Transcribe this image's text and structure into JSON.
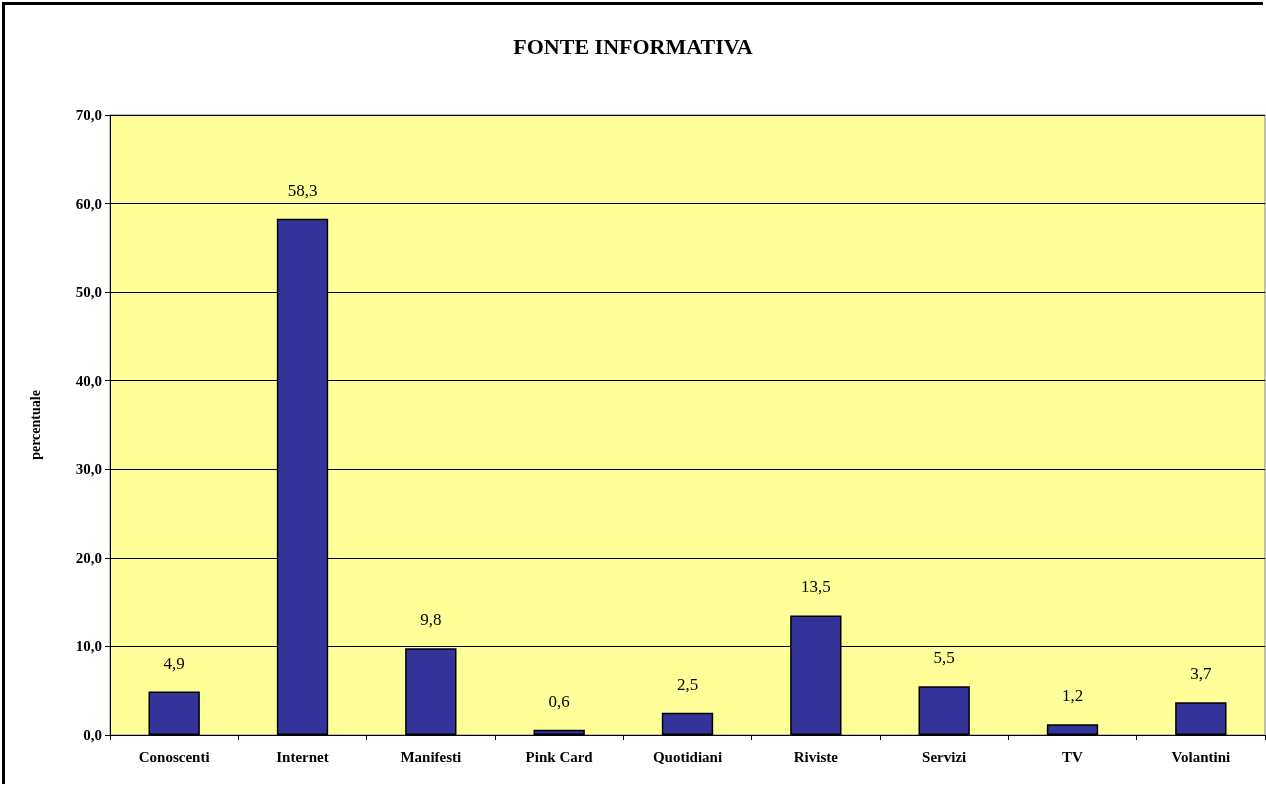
{
  "chart_data": {
    "type": "bar",
    "title": "FONTE INFORMATIVA",
    "ylabel": "percentuale",
    "categories": [
      "Conoscenti",
      "Internet",
      "Manifesti",
      "Pink Card",
      "Quotidiani",
      "Riviste",
      "Servizi",
      "TV",
      "Volantini"
    ],
    "values": [
      4.9,
      58.3,
      9.8,
      0.6,
      2.5,
      13.5,
      5.5,
      1.2,
      3.7
    ],
    "value_labels": [
      "4,9",
      "58,3",
      "9,8",
      "0,6",
      "2,5",
      "13,5",
      "5,5",
      "1,2",
      "3,7"
    ],
    "color": "#333399",
    "ylim": [
      0,
      70
    ],
    "yticks": [
      {
        "value": 0,
        "label": "0,0"
      },
      {
        "value": 10,
        "label": "10,0"
      },
      {
        "value": 20,
        "label": "20,0"
      },
      {
        "value": 30,
        "label": "30,0"
      },
      {
        "value": 40,
        "label": "40,0"
      },
      {
        "value": 50,
        "label": "50,0"
      },
      {
        "value": 60,
        "label": "60,0"
      },
      {
        "value": 70,
        "label": "70,0"
      }
    ],
    "grid": "y"
  }
}
